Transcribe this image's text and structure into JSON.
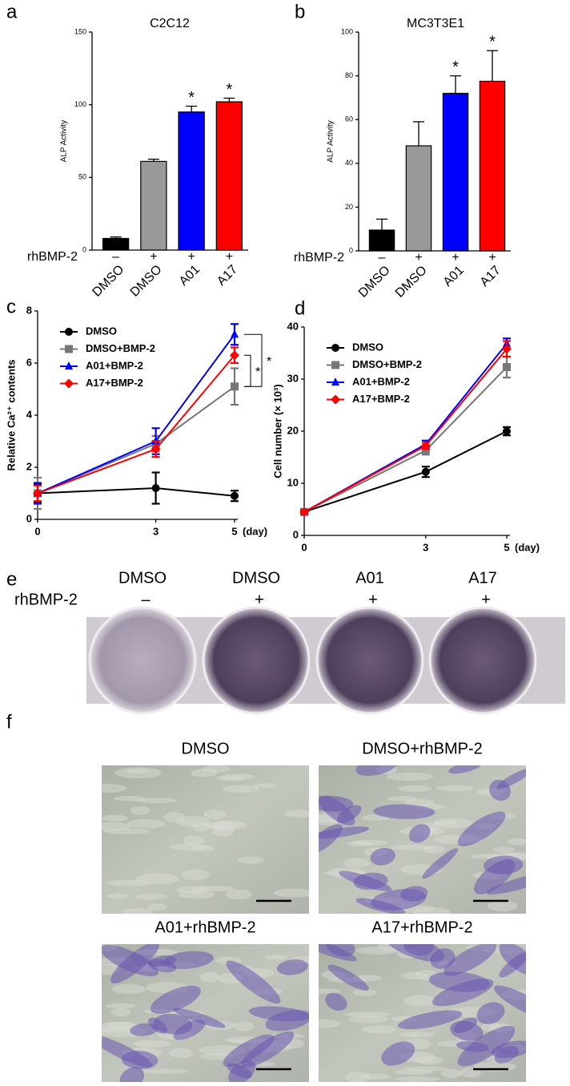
{
  "chart_data": [
    {
      "type": "bar",
      "panel": "a",
      "title": "C2C12",
      "y_label": "ALP Activity",
      "categories": [
        "DMSO",
        "DMSO",
        "A01",
        "A17"
      ],
      "treatment_label": "rhBMP-2",
      "treatment": [
        "–",
        "+",
        "+",
        "+"
      ],
      "values": [
        8,
        61,
        95,
        102
      ],
      "errors": [
        1,
        1.5,
        4,
        2.5
      ],
      "colors": [
        "#000000",
        "#999999",
        "#0000ff",
        "#ff0000"
      ],
      "significance": [
        null,
        null,
        "*",
        "*"
      ],
      "ylim": [
        0,
        150
      ],
      "yticks": [
        0,
        50,
        100,
        150
      ]
    },
    {
      "type": "bar",
      "panel": "b",
      "title": "MC3T3E1",
      "y_label": "ALP Activity",
      "categories": [
        "DMSO",
        "DMSO",
        "A01",
        "A17"
      ],
      "treatment_label": "rhBMP-2",
      "treatment": [
        "–",
        "+",
        "+",
        "+"
      ],
      "values": [
        9.5,
        48,
        72,
        77.5
      ],
      "errors": [
        5,
        11,
        8,
        14
      ],
      "colors": [
        "#000000",
        "#999999",
        "#0000ff",
        "#ff0000"
      ],
      "significance": [
        null,
        null,
        "*",
        "*"
      ],
      "ylim": [
        0,
        100
      ],
      "yticks": [
        0,
        20,
        40,
        60,
        80,
        100
      ]
    },
    {
      "type": "line",
      "panel": "c",
      "y_label": "Relative Ca²⁺ contents",
      "x_unit": "(day)",
      "x": [
        0,
        3,
        5
      ],
      "xlim": [
        0,
        5
      ],
      "xticks": [
        0,
        3,
        5
      ],
      "ylim": [
        0,
        8
      ],
      "yticks": [
        0,
        2,
        4,
        6,
        8
      ],
      "series": [
        {
          "name": "DMSO",
          "color": "#000000",
          "marker": "circle",
          "values": [
            1.0,
            1.2,
            0.9
          ],
          "errors": [
            0.35,
            0.6,
            0.2
          ]
        },
        {
          "name": "DMSO+BMP-2",
          "color": "#777777",
          "marker": "square",
          "values": [
            1.0,
            2.9,
            5.1
          ],
          "errors": [
            0.6,
            0.3,
            0.7
          ]
        },
        {
          "name": "A01+BMP-2",
          "color": "#0000ff",
          "marker": "triangle",
          "values": [
            1.0,
            3.0,
            7.1
          ],
          "errors": [
            0.4,
            0.5,
            0.4
          ]
        },
        {
          "name": "A17+BMP-2",
          "color": "#ff0000",
          "marker": "diamond",
          "values": [
            1.0,
            2.7,
            6.3
          ],
          "errors": [
            0.3,
            0.3,
            0.3
          ]
        }
      ],
      "annotations": [
        "*",
        "*"
      ]
    },
    {
      "type": "line",
      "panel": "d",
      "y_label": "Cell number (× 10³)",
      "x_unit": "(day)",
      "x": [
        0,
        3,
        5
      ],
      "xlim": [
        0,
        5
      ],
      "xticks": [
        0,
        3,
        5
      ],
      "ylim": [
        0,
        40
      ],
      "yticks": [
        0,
        10,
        20,
        30,
        40
      ],
      "series": [
        {
          "name": "DMSO",
          "color": "#000000",
          "marker": "circle",
          "values": [
            4.5,
            12.2,
            20
          ],
          "errors": [
            0.5,
            1,
            0.8
          ]
        },
        {
          "name": "DMSO+BMP-2",
          "color": "#777777",
          "marker": "square",
          "values": [
            4.5,
            16.3,
            32.3
          ],
          "errors": [
            0.5,
            0.8,
            2
          ]
        },
        {
          "name": "A01+BMP-2",
          "color": "#0000ff",
          "marker": "triangle",
          "values": [
            4.5,
            17.5,
            36.8
          ],
          "errors": [
            0.4,
            0.7,
            1
          ]
        },
        {
          "name": "A17+BMP-2",
          "color": "#ff0000",
          "marker": "diamond",
          "values": [
            4.5,
            17.2,
            35.8
          ],
          "errors": [
            0.4,
            0.6,
            1.5
          ]
        }
      ],
      "annotations": []
    }
  ],
  "panel_e": {
    "panel": "e",
    "columns": [
      "DMSO",
      "DMSO",
      "A01",
      "A17"
    ],
    "treatment_label": "rhBMP-2",
    "treatment": [
      "–",
      "+",
      "+",
      "+"
    ]
  },
  "panel_f": {
    "panel": "f",
    "images": [
      "DMSO",
      "DMSO+rhBMP-2",
      "A01+rhBMP-2",
      "A17+rhBMP-2"
    ]
  }
}
